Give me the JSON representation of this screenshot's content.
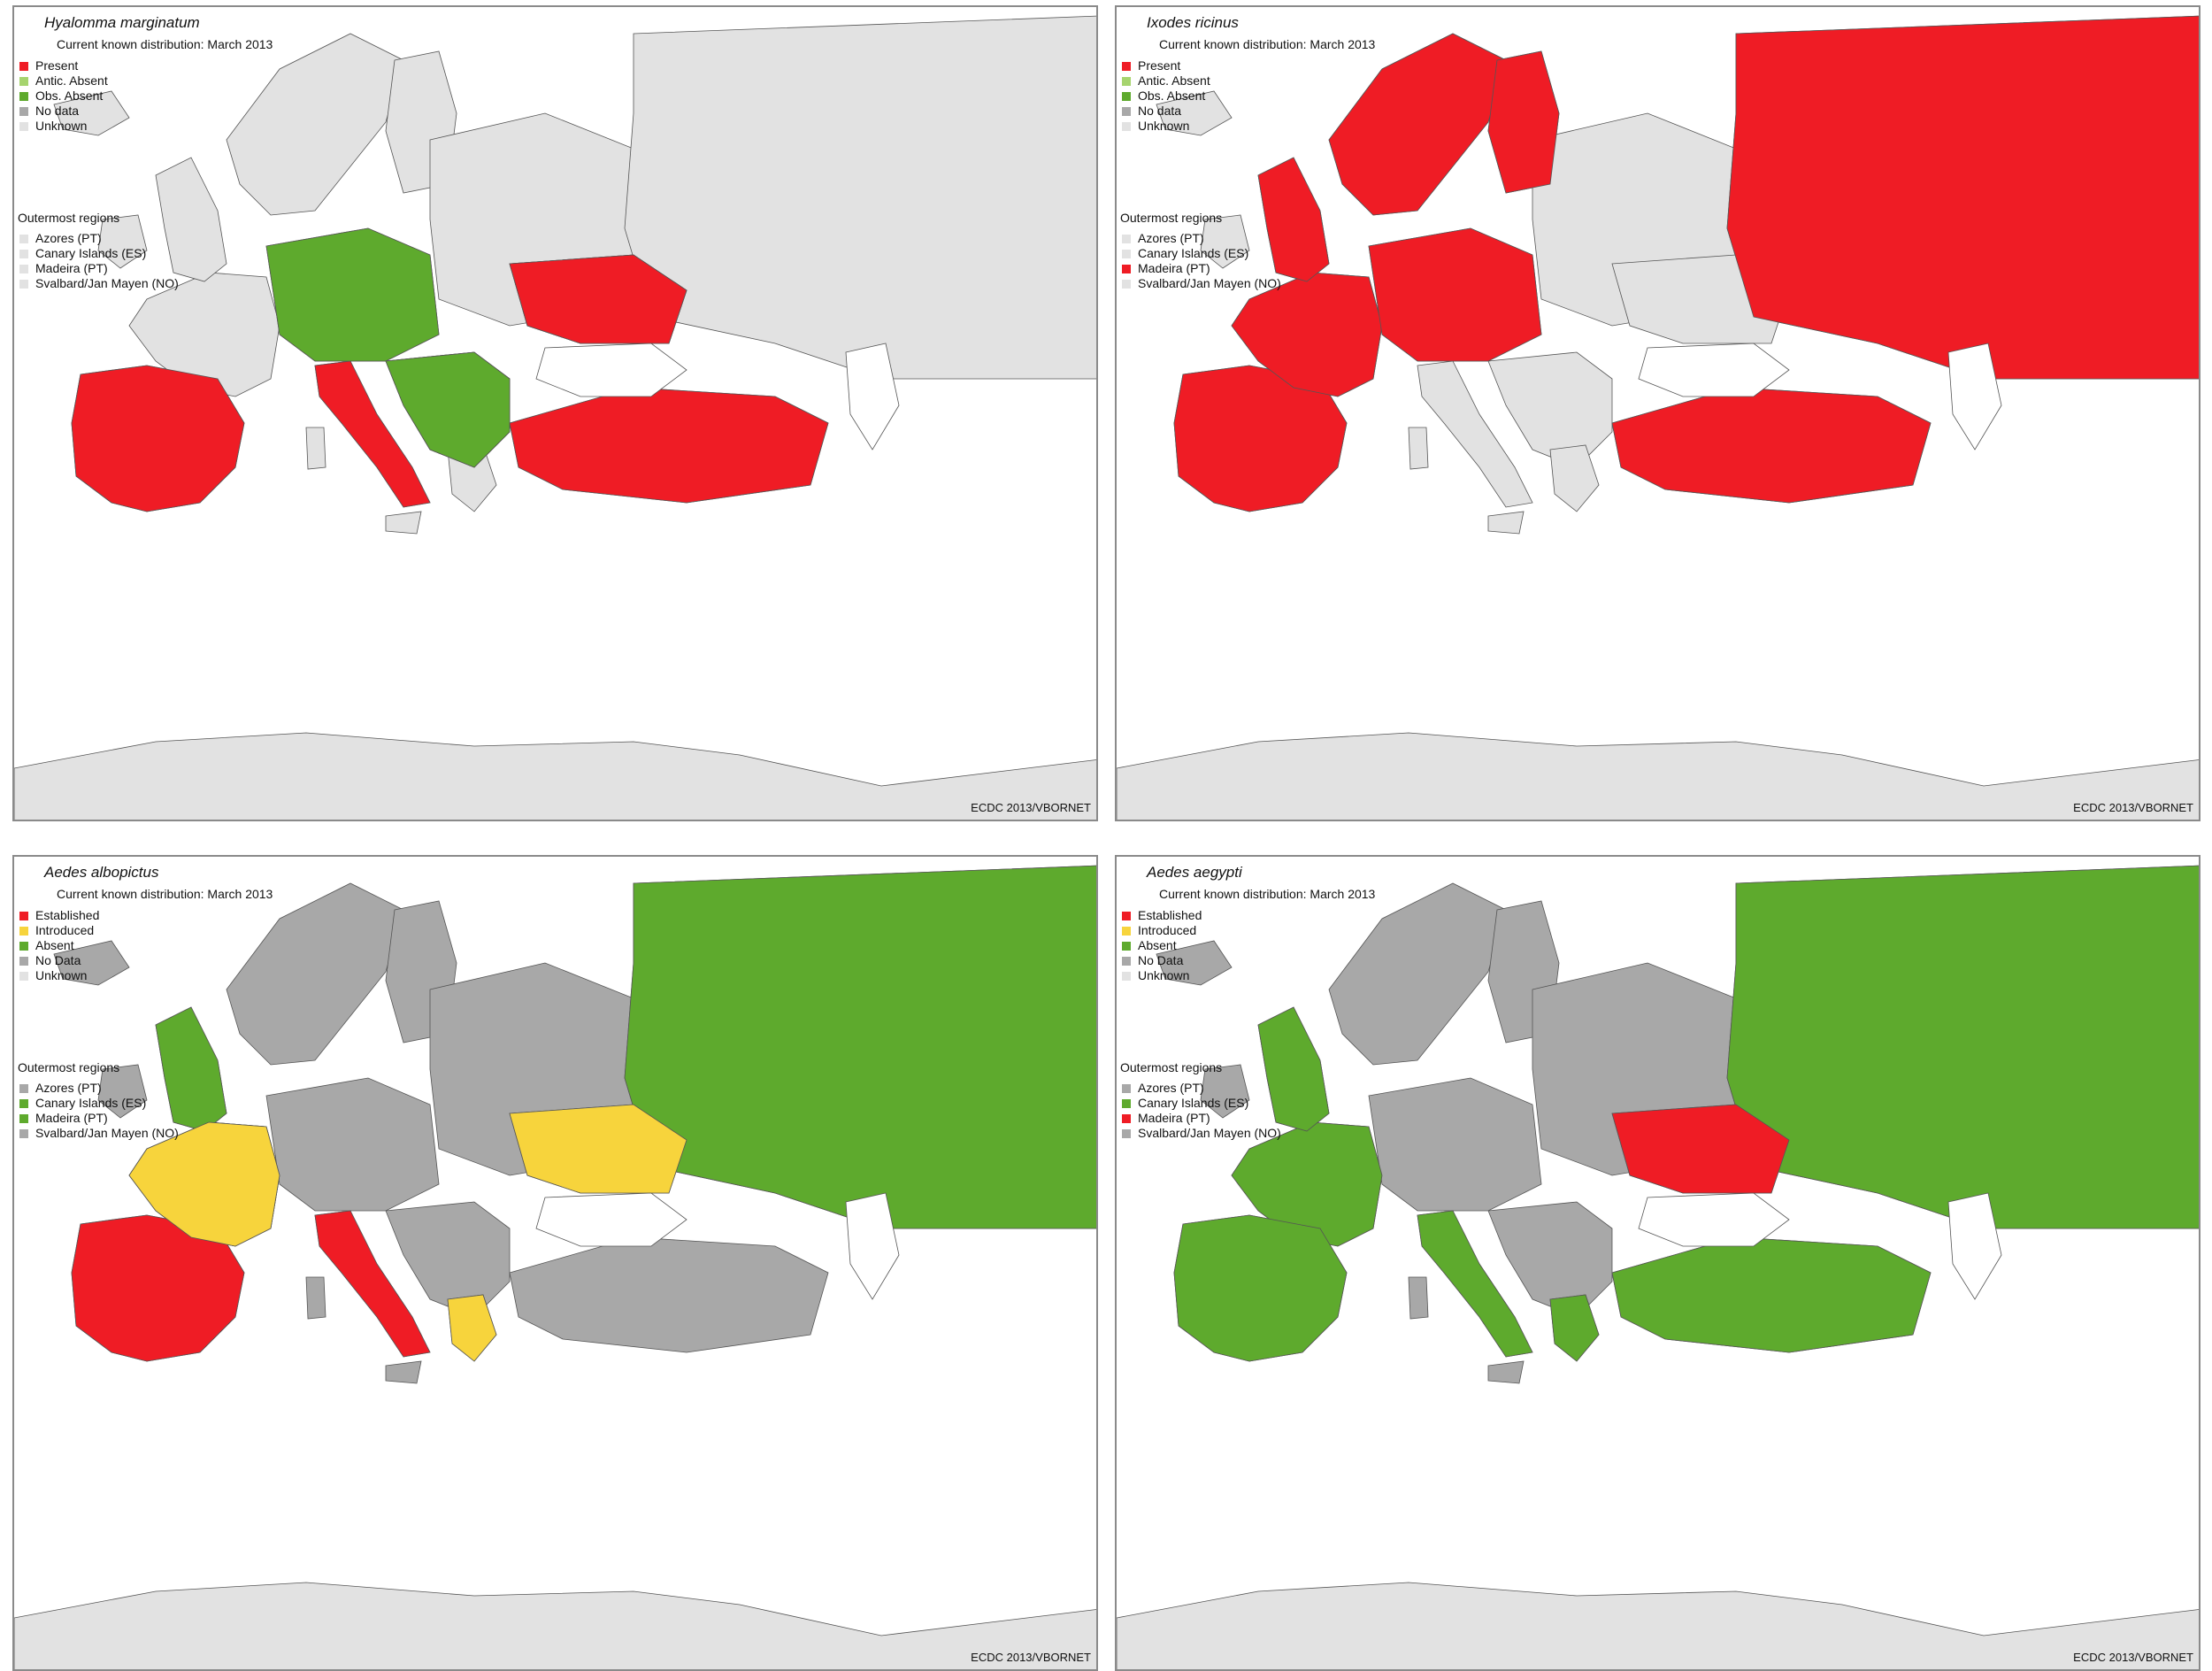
{
  "colors": {
    "present": "#ef1c25",
    "introduced": "#f7d43c",
    "absent_obs": "#5eaa2d",
    "antic_absent": "#a6d46e",
    "no_data": "#a8a8a8",
    "unknown": "#e2e2e2",
    "sea": "#ffffff",
    "border": "#555555"
  },
  "panels": [
    {
      "title": "Hyalomma marginatum",
      "subtitle": "Current known distribution: March 2013",
      "legend": [
        {
          "label": "Present",
          "color": "#ef1c25"
        },
        {
          "label": "Antic. Absent",
          "color": "#a6d46e"
        },
        {
          "label": "Obs. Absent",
          "color": "#5eaa2d"
        },
        {
          "label": "No data",
          "color": "#a8a8a8"
        },
        {
          "label": "Unknown",
          "color": "#e2e2e2"
        }
      ],
      "outermost_title": "Outermost regions",
      "outermost": [
        {
          "label": "Azores (PT)",
          "color": "#e2e2e2"
        },
        {
          "label": "Canary Islands (ES)",
          "color": "#e2e2e2"
        },
        {
          "label": "Madeira (PT)",
          "color": "#e2e2e2"
        },
        {
          "label": "Svalbard/Jan Mayen (NO)",
          "color": "#e2e2e2"
        }
      ],
      "credit": "ECDC 2013/VBORNET",
      "base_color": "#e2e2e2",
      "regions": [
        {
          "name": "Iberia",
          "color": "#ef1c25"
        },
        {
          "name": "Italy",
          "color": "#ef1c25"
        },
        {
          "name": "Balkans",
          "color": "#ef1c25"
        },
        {
          "name": "Southern Russia",
          "color": "#ef1c25"
        },
        {
          "name": "Ukraine coast",
          "color": "#ef1c25"
        },
        {
          "name": "Turkey",
          "color": "#ef1c25"
        },
        {
          "name": "Czech Republic",
          "color": "#5eaa2d"
        },
        {
          "name": "Hungary",
          "color": "#5eaa2d"
        }
      ]
    },
    {
      "title": "Ixodes ricinus",
      "subtitle": "Current known distribution: March 2013",
      "legend": [
        {
          "label": "Present",
          "color": "#ef1c25"
        },
        {
          "label": "Antic. Absent",
          "color": "#a6d46e"
        },
        {
          "label": "Obs. Absent",
          "color": "#5eaa2d"
        },
        {
          "label": "No data",
          "color": "#a8a8a8"
        },
        {
          "label": "Unknown",
          "color": "#e2e2e2"
        }
      ],
      "outermost_title": "Outermost regions",
      "outermost": [
        {
          "label": "Azores (PT)",
          "color": "#e2e2e2"
        },
        {
          "label": "Canary Islands (ES)",
          "color": "#e2e2e2"
        },
        {
          "label": "Madeira (PT)",
          "color": "#ef1c25"
        },
        {
          "label": "Svalbard/Jan Mayen (NO)",
          "color": "#e2e2e2"
        }
      ],
      "credit": "ECDC 2013/VBORNET",
      "base_color": "#e2e2e2",
      "regions": [
        {
          "name": "Iberia",
          "color": "#ef1c25"
        },
        {
          "name": "France",
          "color": "#ef1c25"
        },
        {
          "name": "British Isles",
          "color": "#ef1c25"
        },
        {
          "name": "Scandinavia",
          "color": "#ef1c25"
        },
        {
          "name": "Finland",
          "color": "#ef1c25"
        },
        {
          "name": "Central Europe",
          "color": "#ef1c25"
        },
        {
          "name": "Northern Russia",
          "color": "#ef1c25"
        },
        {
          "name": "Turkey",
          "color": "#ef1c25"
        }
      ]
    },
    {
      "title": "Aedes albopictus",
      "subtitle": "Current known distribution: March 2013",
      "legend": [
        {
          "label": "Established",
          "color": "#ef1c25"
        },
        {
          "label": "Introduced",
          "color": "#f7d43c"
        },
        {
          "label": "Absent",
          "color": "#5eaa2d"
        },
        {
          "label": "No Data",
          "color": "#a8a8a8"
        },
        {
          "label": "Unknown",
          "color": "#e2e2e2"
        }
      ],
      "outermost_title": "Outermost regions",
      "outermost": [
        {
          "label": "Azores (PT)",
          "color": "#a8a8a8"
        },
        {
          "label": "Canary Islands (ES)",
          "color": "#5eaa2d"
        },
        {
          "label": "Madeira (PT)",
          "color": "#5eaa2d"
        },
        {
          "label": "Svalbard/Jan Mayen (NO)",
          "color": "#a8a8a8"
        }
      ],
      "credit": "ECDC 2013/VBORNET",
      "base_color": "#a8a8a8",
      "regions": [
        {
          "name": "France",
          "color": "#5eaa2d"
        },
        {
          "name": "British Isles",
          "color": "#5eaa2d"
        },
        {
          "name": "Russia",
          "color": "#5eaa2d"
        },
        {
          "name": "Italy",
          "color": "#ef1c25"
        },
        {
          "name": "Mediterranean Spain",
          "color": "#ef1c25"
        },
        {
          "name": "Southern France",
          "color": "#f7d43c"
        },
        {
          "name": "Southern Russia",
          "color": "#f7d43c"
        },
        {
          "name": "Greece",
          "color": "#f7d43c"
        }
      ]
    },
    {
      "title": "Aedes aegypti",
      "subtitle": "Current known distribution: March 2013",
      "legend": [
        {
          "label": "Established",
          "color": "#ef1c25"
        },
        {
          "label": "Introduced",
          "color": "#f7d43c"
        },
        {
          "label": "Absent",
          "color": "#5eaa2d"
        },
        {
          "label": "No Data",
          "color": "#a8a8a8"
        },
        {
          "label": "Unknown",
          "color": "#e2e2e2"
        }
      ],
      "outermost_title": "Outermost regions",
      "outermost": [
        {
          "label": "Azores (PT)",
          "color": "#a8a8a8"
        },
        {
          "label": "Canary Islands (ES)",
          "color": "#5eaa2d"
        },
        {
          "label": "Madeira (PT)",
          "color": "#ef1c25"
        },
        {
          "label": "Svalbard/Jan Mayen (NO)",
          "color": "#a8a8a8"
        }
      ],
      "credit": "ECDC 2013/VBORNET",
      "base_color": "#a8a8a8",
      "regions": [
        {
          "name": "France",
          "color": "#5eaa2d"
        },
        {
          "name": "British Isles",
          "color": "#5eaa2d"
        },
        {
          "name": "Russia",
          "color": "#5eaa2d"
        },
        {
          "name": "Italy",
          "color": "#5eaa2d"
        },
        {
          "name": "Iberia",
          "color": "#5eaa2d"
        },
        {
          "name": "Black Sea coast",
          "color": "#ef1c25"
        },
        {
          "name": "Greece",
          "color": "#5eaa2d"
        },
        {
          "name": "Turkey coast",
          "color": "#5eaa2d"
        }
      ]
    }
  ]
}
